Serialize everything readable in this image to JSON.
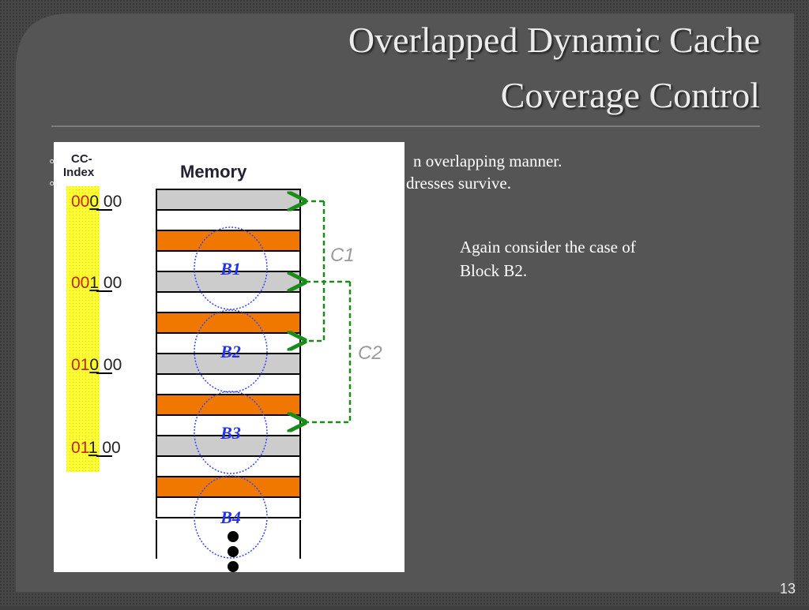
{
  "slide": {
    "title": [
      "Overlapped Dynamic Cache",
      "Coverage Control"
    ],
    "bullets": [
      "n overlapping manner.",
      "dresses survive."
    ],
    "figure": {
      "index_header": [
        "CC-",
        "Index"
      ],
      "memory_header": "Memory",
      "addresses": [
        {
          "bits": "00",
          "bit": "0",
          "offset": "00"
        },
        {
          "bits": "00",
          "bit": "1",
          "offset": "00"
        },
        {
          "bits": "01",
          "bit": "0",
          "offset": "00"
        },
        {
          "bits": "01",
          "bit": "1",
          "offset": "00"
        }
      ],
      "blocks": [
        "B1",
        "B2",
        "B3",
        "B4"
      ],
      "coverages": [
        "C1",
        "C2"
      ]
    },
    "note": [
      "Again consider the case of",
      "Block B2."
    ],
    "page_number": "13"
  }
}
